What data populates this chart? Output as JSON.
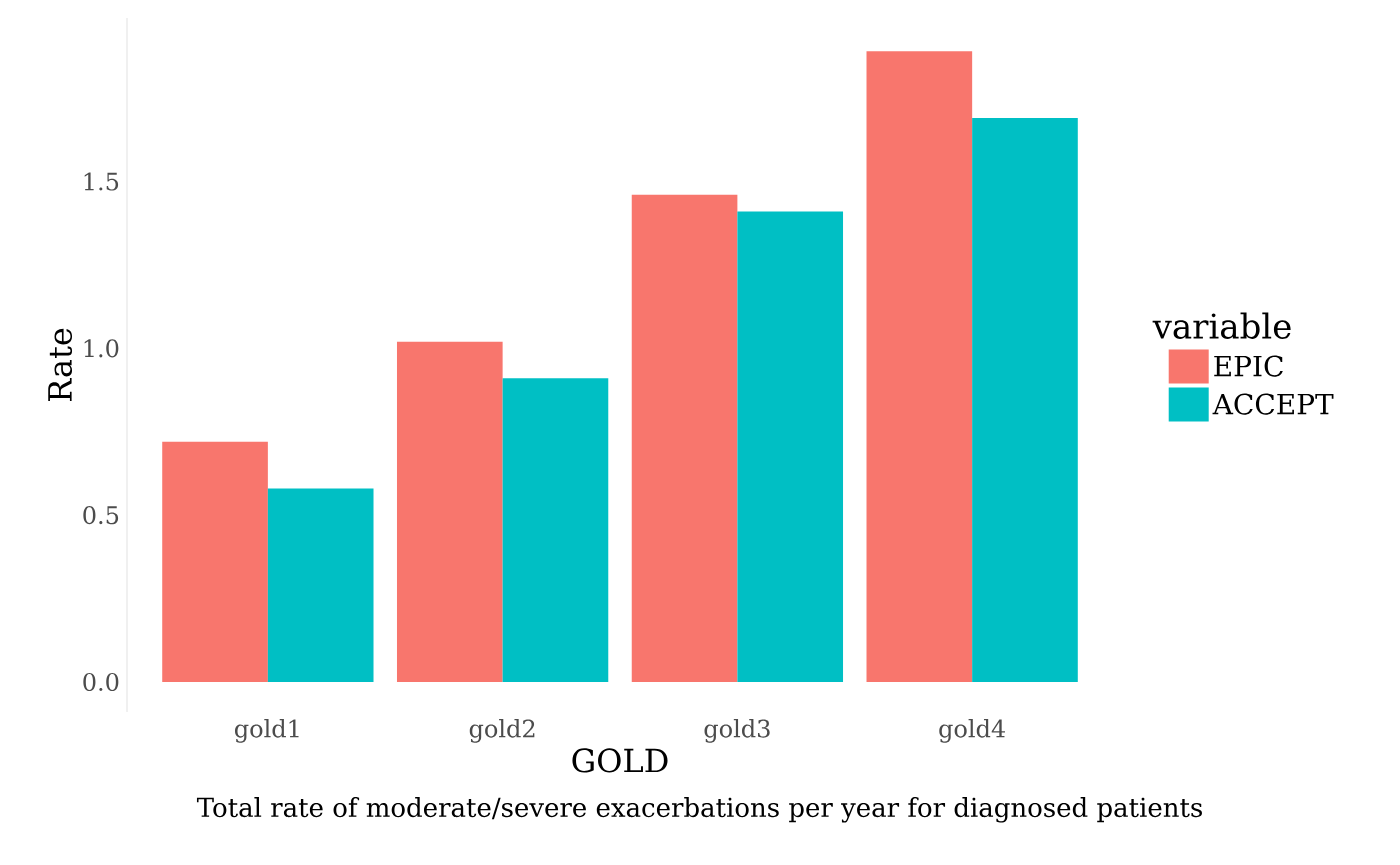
{
  "chart_data": {
    "type": "bar",
    "xlabel": "GOLD",
    "ylabel": "Rate",
    "legend_title": "variable",
    "legend": "right",
    "categories": [
      "gold1",
      "gold2",
      "gold3",
      "gold4"
    ],
    "series": [
      {
        "name": "EPIC",
        "color": "#f8766d",
        "values": [
          0.72,
          1.02,
          1.46,
          1.89
        ]
      },
      {
        "name": "ACCEPT",
        "color": "#00bfc4",
        "values": [
          0.58,
          0.91,
          1.41,
          1.69
        ]
      }
    ],
    "ylim": [
      -0.09,
      1.99
    ],
    "yticks": [
      {
        "value": 0,
        "label": "0.0"
      },
      0.5,
      {
        "value": 1,
        "label": "1.0"
      },
      1.5
    ],
    "grid": false,
    "annotations": [
      "Total rate of moderate/severe exacerbations per year for diagnosed patients"
    ]
  }
}
